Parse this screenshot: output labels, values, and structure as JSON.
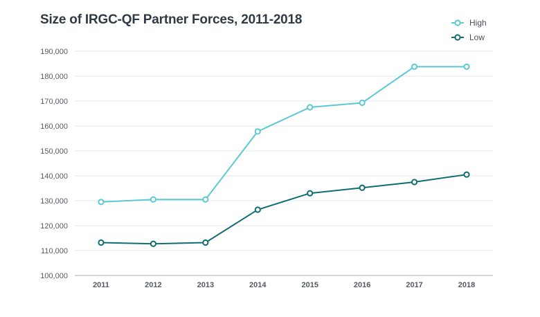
{
  "chart_data": {
    "type": "line",
    "title": "Size of IRGC-QF Partner Forces, 2011-2018",
    "xlabel": "",
    "ylabel": "",
    "categories": [
      "2011",
      "2012",
      "2013",
      "2014",
      "2015",
      "2016",
      "2017",
      "2018"
    ],
    "ylim": [
      100000,
      190000
    ],
    "yticks": [
      100000,
      110000,
      120000,
      130000,
      140000,
      150000,
      160000,
      170000,
      180000,
      190000
    ],
    "ytick_labels": [
      "100,000",
      "110,000",
      "120,000",
      "130,000",
      "140,000",
      "150,000",
      "160,000",
      "170,000",
      "180,000",
      "190,000"
    ],
    "grid": true,
    "legend_position": "top-right",
    "series": [
      {
        "name": "High",
        "color": "#5bc8d3",
        "values": [
          129500,
          130500,
          130500,
          157800,
          167500,
          169300,
          183800,
          183800
        ]
      },
      {
        "name": "Low",
        "color": "#0e6e73",
        "values": [
          113200,
          112700,
          113200,
          126400,
          133000,
          135200,
          137500,
          140500
        ]
      }
    ]
  }
}
